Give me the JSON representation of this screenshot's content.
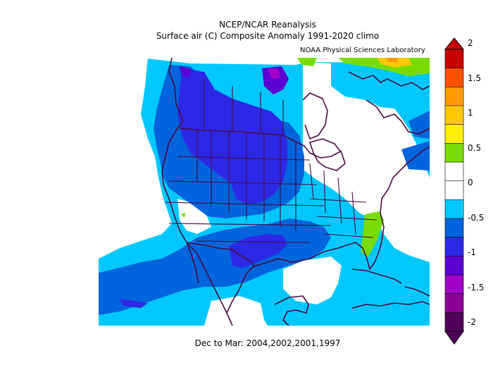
{
  "header": {
    "title": "NCEP/NCAR Reanalysis",
    "subtitle": "Surface air (C) Composite Anomaly 1991-2020 climo",
    "credit": "NOAA Physical Sciences Laboratory"
  },
  "footer": {
    "period": "Dec to Mar: 2004,2002,2001,1997"
  },
  "legend": {
    "labels": [
      "2",
      "1.5",
      "1",
      "0.5",
      "0",
      "-0.5",
      "-1",
      "-1.5",
      "-2"
    ],
    "colors_top_to_bottom": [
      "#c80000",
      "#ff5000",
      "#ff9b00",
      "#ffc800",
      "#fff000",
      "#78dc00",
      "#ffffff",
      "#ffffff",
      "#00c8ff",
      "#0064dc",
      "#2d28e6",
      "#5a00d2",
      "#a000c8",
      "#8c0096",
      "#50005a"
    ]
  },
  "map": {
    "variable": "Surface air temperature anomaly",
    "units": "C",
    "region": "North America"
  },
  "colors": {
    "light_blue": "#00c8ff",
    "mid_blue": "#0064dc",
    "blue_purple": "#2d28e6",
    "purple": "#5a00d2",
    "magenta": "#a000c8",
    "green": "#78dc00",
    "yellow": "#ffc800",
    "orange": "#ff9b00",
    "red": "#c80000",
    "coast": "#4a0a40"
  }
}
